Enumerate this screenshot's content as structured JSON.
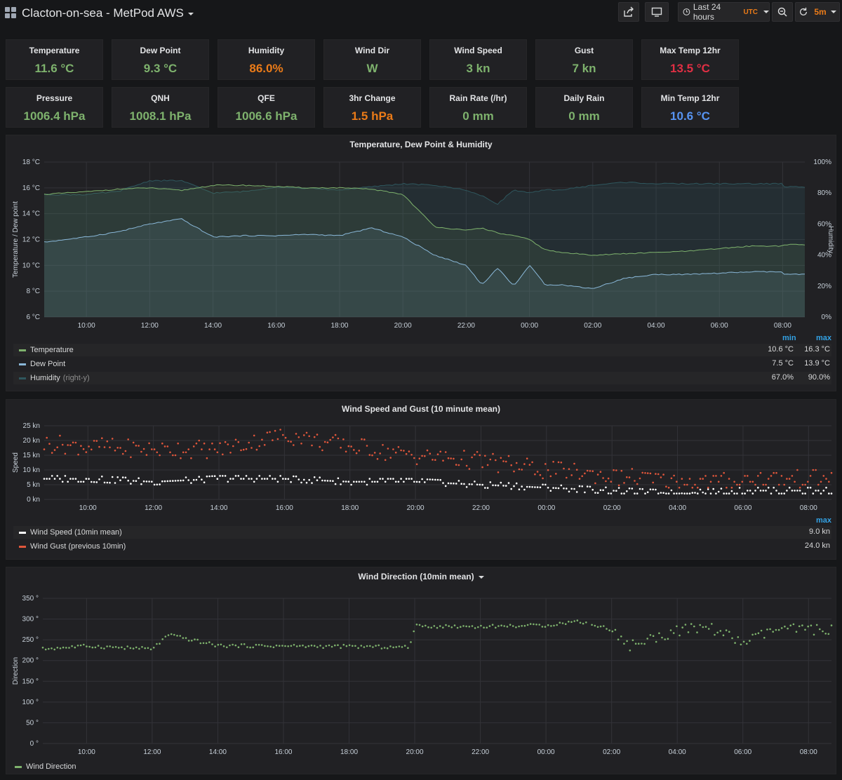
{
  "header": {
    "title": "Clacton-on-sea - MetPod AWS",
    "time_range": "Last 24 hours",
    "timezone": "UTC",
    "refresh_interval": "5m"
  },
  "stats": [
    {
      "title": "Temperature",
      "value": "11.6 °C",
      "color": "#7eb26d"
    },
    {
      "title": "Dew Point",
      "value": "9.3 °C",
      "color": "#7eb26d"
    },
    {
      "title": "Humidity",
      "value": "86.0%",
      "color": "#eb7b18"
    },
    {
      "title": "Wind Dir",
      "value": "W",
      "color": "#7eb26d"
    },
    {
      "title": "Wind Speed",
      "value": "3 kn",
      "color": "#7eb26d"
    },
    {
      "title": "Gust",
      "value": "7 kn",
      "color": "#7eb26d"
    },
    {
      "title": "Max Temp 12hr",
      "value": "13.5 °C",
      "color": "#e02f44"
    },
    {
      "title": "Pressure",
      "value": "1006.4 hPa",
      "color": "#7eb26d"
    },
    {
      "title": "QNH",
      "value": "1008.1 hPa",
      "color": "#7eb26d"
    },
    {
      "title": "QFE",
      "value": "1006.6 hPa",
      "color": "#7eb26d"
    },
    {
      "title": "3hr Change",
      "value": "1.5 hPa",
      "color": "#eb7b18"
    },
    {
      "title": "Rain Rate (/hr)",
      "value": "0 mm",
      "color": "#7eb26d"
    },
    {
      "title": "Daily Rain",
      "value": "0 mm",
      "color": "#7eb26d"
    },
    {
      "title": "Min Temp 12hr",
      "value": "10.6 °C",
      "color": "#5794f2"
    }
  ],
  "temp_panel": {
    "title": "Temperature, Dew Point & Humidity",
    "ylabel_left": "Temperature / Dew point",
    "ylabel_right": "Humidity",
    "left_ticks": [
      "18 °C",
      "16 °C",
      "14 °C",
      "12 °C",
      "10 °C",
      "8 °C",
      "6 °C"
    ],
    "right_ticks": [
      "100%",
      "80%",
      "60%",
      "40%",
      "20%",
      "0%"
    ],
    "legend_headers": {
      "min": "min",
      "max": "max"
    },
    "legend": [
      {
        "name": "Temperature",
        "suffix": "",
        "min": "10.6 °C",
        "max": "16.3 °C",
        "color": "#7eb26d"
      },
      {
        "name": "Dew Point",
        "suffix": "",
        "min": "7.5 °C",
        "max": "13.9 °C",
        "color": "#8ab8d9"
      },
      {
        "name": "Humidity",
        "suffix": "(right-y)",
        "min": "67.0%",
        "max": "90.0%",
        "color": "#2f575e"
      }
    ]
  },
  "wind_panel": {
    "title": "Wind Speed and Gust (10 minute mean)",
    "ylabel": "Speed",
    "ticks": [
      "25 kn",
      "20 kn",
      "15 kn",
      "10 kn",
      "5 kn",
      "0 kn"
    ],
    "legend_header": "max",
    "legend": [
      {
        "name": "Wind Speed (10min mean)",
        "max": "9.0 kn",
        "color": "#ffffff"
      },
      {
        "name": "Wind Gust (previous 10min)",
        "max": "24.0 kn",
        "color": "#e0563b"
      }
    ]
  },
  "dir_panel": {
    "title": "Wind Direction (10min mean)",
    "ylabel": "Direction",
    "ticks": [
      "350 °",
      "300 °",
      "250 °",
      "200 °",
      "150 °",
      "100 °",
      "50 °",
      "0 °"
    ],
    "legend": [
      {
        "name": "Wind Direction",
        "color": "#7eb26d"
      }
    ]
  },
  "x_ticks": [
    "10:00",
    "12:00",
    "14:00",
    "16:00",
    "18:00",
    "20:00",
    "22:00",
    "00:00",
    "02:00",
    "04:00",
    "06:00",
    "08:00"
  ],
  "chart_data": [
    {
      "type": "line",
      "title": "Temperature, Dew Point & Humidity",
      "x": [
        "08:40",
        "10:00",
        "11:00",
        "12:00",
        "13:00",
        "14:00",
        "15:00",
        "16:00",
        "17:00",
        "18:00",
        "19:00",
        "20:00",
        "21:00",
        "22:00",
        "22:30",
        "23:00",
        "23:30",
        "00:00",
        "00:30",
        "01:00",
        "02:00",
        "03:00",
        "04:00",
        "05:00",
        "06:00",
        "07:00",
        "08:00",
        "08:40"
      ],
      "series": [
        {
          "name": "Temperature",
          "axis": "left",
          "values": [
            15.5,
            15.7,
            15.9,
            16.0,
            15.8,
            16.2,
            16.2,
            16.1,
            16.0,
            16.0,
            15.9,
            15.5,
            13.0,
            12.7,
            12.9,
            12.5,
            12.3,
            12.0,
            11.2,
            11.0,
            10.8,
            10.9,
            11.0,
            11.1,
            11.3,
            11.5,
            11.5,
            11.6
          ]
        },
        {
          "name": "Dew Point",
          "axis": "left",
          "values": [
            11.8,
            12.2,
            12.6,
            13.2,
            13.6,
            12.2,
            12.3,
            12.3,
            12.4,
            12.3,
            12.9,
            12.2,
            10.8,
            10.0,
            8.5,
            9.8,
            8.4,
            10.0,
            8.5,
            8.5,
            8.2,
            9.0,
            9.3,
            9.3,
            9.4,
            9.5,
            9.5,
            9.3
          ]
        },
        {
          "name": "Humidity",
          "axis": "right",
          "values": [
            79,
            79,
            81,
            88,
            88,
            80,
            81,
            84,
            83,
            82,
            84,
            86,
            85,
            82,
            78,
            73,
            82,
            80,
            82,
            82,
            85,
            87,
            86,
            86,
            86,
            86,
            86,
            84
          ]
        }
      ],
      "ylim": [
        6,
        18
      ],
      "y2lim": [
        0,
        100
      ]
    },
    {
      "type": "scatter",
      "title": "Wind Speed and Gust (10 minute mean)",
      "series": [
        {
          "name": "Wind Speed (10min mean)",
          "x": [
            "08:40",
            "10:00",
            "12:00",
            "14:00",
            "16:00",
            "18:00",
            "20:00",
            "22:00",
            "00:00",
            "02:00",
            "04:00",
            "06:00",
            "08:40"
          ],
          "values": [
            7,
            7,
            6,
            7,
            7,
            6,
            6,
            5,
            4,
            3,
            2,
            3,
            3
          ]
        },
        {
          "name": "Wind Gust (previous 10min)",
          "x": [
            "08:40",
            "10:00",
            "12:00",
            "14:00",
            "16:00",
            "18:00",
            "20:00",
            "22:00",
            "00:00",
            "02:00",
            "04:00",
            "06:00",
            "08:40"
          ],
          "values": [
            19,
            18,
            17,
            17,
            22,
            18,
            15,
            13,
            10,
            8,
            6,
            6,
            7
          ]
        }
      ],
      "ylim": [
        0,
        25
      ]
    },
    {
      "type": "scatter",
      "title": "Wind Direction (10min mean)",
      "series": [
        {
          "name": "Wind Direction",
          "x": [
            "08:40",
            "10:00",
            "12:00",
            "12:30",
            "14:00",
            "16:00",
            "18:00",
            "19:50",
            "20:00",
            "22:00",
            "00:00",
            "01:00",
            "02:00",
            "02:30",
            "04:00",
            "05:00",
            "06:00",
            "07:00",
            "08:40"
          ],
          "values": [
            228,
            235,
            228,
            262,
            236,
            235,
            234,
            232,
            283,
            282,
            285,
            295,
            275,
            235,
            272,
            280,
            242,
            275,
            275
          ]
        }
      ],
      "ylim": [
        0,
        350
      ]
    }
  ]
}
